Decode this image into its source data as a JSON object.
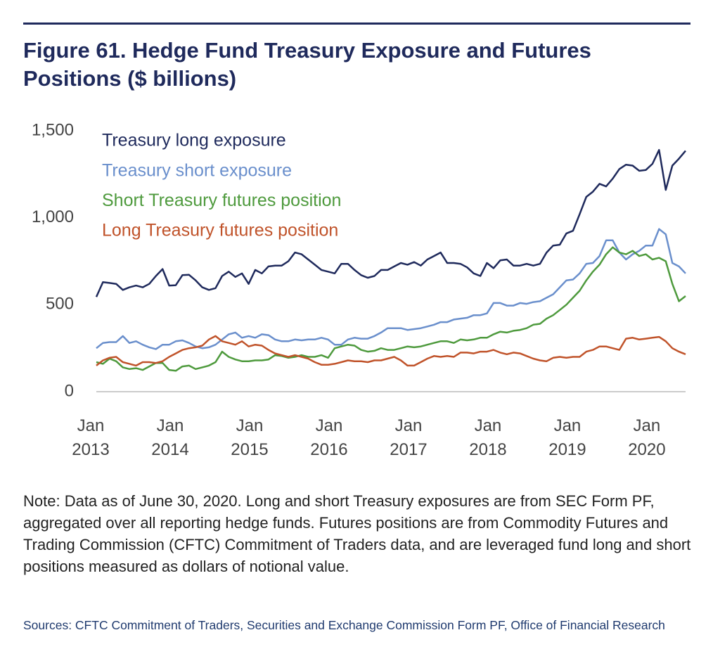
{
  "chart_data": {
    "type": "line",
    "title": "Figure 61. Hedge Fund Treasury Exposure and Futures Positions ($ billions)",
    "note": "Note: Data as of June 30, 2020. Long and short Treasury exposures are from SEC Form PF, aggregated over all reporting hedge funds. Futures positions are from Commodity Futures and Trading Commission (CFTC) Commitment of Traders data, and are leveraged fund long and short positions measured as dollars of notional value.",
    "sources": "Sources: CFTC Commitment of Traders, Securities and Exchange Commission Form PF, Office of Financial Research",
    "x": [
      "2013-01",
      "2013-02",
      "2013-03",
      "2013-04",
      "2013-05",
      "2013-06",
      "2013-07",
      "2013-08",
      "2013-09",
      "2013-10",
      "2013-11",
      "2013-12",
      "2014-01",
      "2014-02",
      "2014-03",
      "2014-04",
      "2014-05",
      "2014-06",
      "2014-07",
      "2014-08",
      "2014-09",
      "2014-10",
      "2014-11",
      "2014-12",
      "2015-01",
      "2015-02",
      "2015-03",
      "2015-04",
      "2015-05",
      "2015-06",
      "2015-07",
      "2015-08",
      "2015-09",
      "2015-10",
      "2015-11",
      "2015-12",
      "2016-01",
      "2016-02",
      "2016-03",
      "2016-04",
      "2016-05",
      "2016-06",
      "2016-07",
      "2016-08",
      "2016-09",
      "2016-10",
      "2016-11",
      "2016-12",
      "2017-01",
      "2017-02",
      "2017-03",
      "2017-04",
      "2017-05",
      "2017-06",
      "2017-07",
      "2017-08",
      "2017-09",
      "2017-10",
      "2017-11",
      "2017-12",
      "2018-01",
      "2018-02",
      "2018-03",
      "2018-04",
      "2018-05",
      "2018-06",
      "2018-07",
      "2018-08",
      "2018-09",
      "2018-10",
      "2018-11",
      "2018-12",
      "2019-01",
      "2019-02",
      "2019-03",
      "2019-04",
      "2019-05",
      "2019-06",
      "2019-07",
      "2019-08",
      "2019-09",
      "2019-10",
      "2019-11",
      "2019-12",
      "2020-01",
      "2020-02",
      "2020-03",
      "2020-04",
      "2020-05",
      "2020-06"
    ],
    "series": [
      {
        "name": "Treasury long exposure",
        "color": "#1f2a5c",
        "values": [
          545,
          630,
          625,
          620,
          585,
          600,
          610,
          600,
          620,
          665,
          705,
          610,
          612,
          670,
          672,
          640,
          600,
          585,
          595,
          665,
          690,
          660,
          680,
          620,
          700,
          680,
          720,
          725,
          725,
          750,
          800,
          790,
          760,
          730,
          700,
          690,
          680,
          735,
          735,
          700,
          670,
          655,
          665,
          700,
          700,
          720,
          740,
          730,
          745,
          725,
          760,
          780,
          800,
          740,
          740,
          735,
          715,
          680,
          665,
          740,
          710,
          755,
          760,
          725,
          725,
          735,
          725,
          735,
          800,
          840,
          845,
          910,
          925,
          1020,
          1120,
          1150,
          1195,
          1180,
          1225,
          1280,
          1305,
          1300,
          1270,
          1275,
          1310,
          1390,
          1160,
          1300,
          1340,
          1385
        ]
      },
      {
        "name": "Treasury short exposure",
        "color": "#6a8fcc",
        "values": [
          250,
          280,
          285,
          285,
          320,
          280,
          290,
          270,
          255,
          245,
          270,
          270,
          290,
          295,
          280,
          260,
          250,
          255,
          270,
          300,
          330,
          340,
          310,
          320,
          310,
          330,
          325,
          300,
          290,
          290,
          300,
          295,
          300,
          300,
          310,
          300,
          270,
          270,
          300,
          310,
          305,
          305,
          320,
          340,
          365,
          365,
          365,
          355,
          360,
          365,
          375,
          385,
          400,
          400,
          415,
          420,
          425,
          440,
          440,
          450,
          510,
          510,
          495,
          495,
          510,
          505,
          515,
          520,
          540,
          560,
          600,
          640,
          645,
          680,
          735,
          740,
          780,
          870,
          870,
          800,
          760,
          790,
          810,
          840,
          840,
          935,
          905,
          740,
          720,
          680
        ]
      },
      {
        "name": "Short Treasury futures position",
        "color": "#4e9a3d",
        "values": [
          170,
          160,
          190,
          175,
          140,
          130,
          135,
          125,
          145,
          165,
          165,
          125,
          120,
          145,
          150,
          130,
          140,
          150,
          170,
          230,
          200,
          185,
          175,
          175,
          180,
          180,
          185,
          210,
          205,
          195,
          200,
          210,
          200,
          200,
          210,
          195,
          250,
          260,
          270,
          265,
          240,
          230,
          235,
          250,
          240,
          240,
          250,
          260,
          255,
          260,
          270,
          280,
          290,
          290,
          280,
          300,
          295,
          300,
          310,
          310,
          330,
          345,
          340,
          350,
          355,
          365,
          385,
          390,
          420,
          440,
          470,
          500,
          540,
          580,
          640,
          690,
          730,
          790,
          830,
          800,
          790,
          810,
          780,
          790,
          760,
          770,
          750,
          620,
          520,
          550
        ]
      },
      {
        "name": "Long Treasury futures position",
        "color": "#c0532a",
        "values": [
          150,
          180,
          195,
          200,
          170,
          160,
          150,
          170,
          170,
          165,
          175,
          200,
          220,
          240,
          250,
          255,
          265,
          300,
          320,
          290,
          280,
          270,
          290,
          260,
          270,
          265,
          240,
          220,
          210,
          200,
          210,
          200,
          190,
          170,
          155,
          155,
          160,
          170,
          180,
          175,
          175,
          170,
          180,
          180,
          190,
          200,
          180,
          150,
          150,
          170,
          190,
          205,
          200,
          205,
          200,
          225,
          225,
          220,
          230,
          230,
          240,
          225,
          215,
          225,
          220,
          205,
          190,
          180,
          175,
          195,
          200,
          195,
          200,
          200,
          230,
          240,
          260,
          260,
          250,
          240,
          305,
          310,
          300,
          305,
          310,
          315,
          290,
          250,
          230,
          215
        ]
      }
    ],
    "xlim": [
      "2013-01",
      "2020-06"
    ],
    "xticks": [
      {
        "value": "2013-01",
        "label": "Jan 2013"
      },
      {
        "value": "2014-01",
        "label": "Jan 2014"
      },
      {
        "value": "2015-01",
        "label": "Jan 2015"
      },
      {
        "value": "2016-01",
        "label": "Jan 2016"
      },
      {
        "value": "2017-01",
        "label": "Jan 2017"
      },
      {
        "value": "2018-01",
        "label": "Jan 2018"
      },
      {
        "value": "2019-01",
        "label": "Jan 2019"
      },
      {
        "value": "2020-01",
        "label": "Jan 2020"
      }
    ],
    "ylim": [
      0,
      1500
    ],
    "yticks": [
      0,
      500,
      {
        "value": 1000,
        "label": "1,000"
      },
      {
        "value": 1500,
        "label": "1,500"
      }
    ],
    "grid": false
  }
}
